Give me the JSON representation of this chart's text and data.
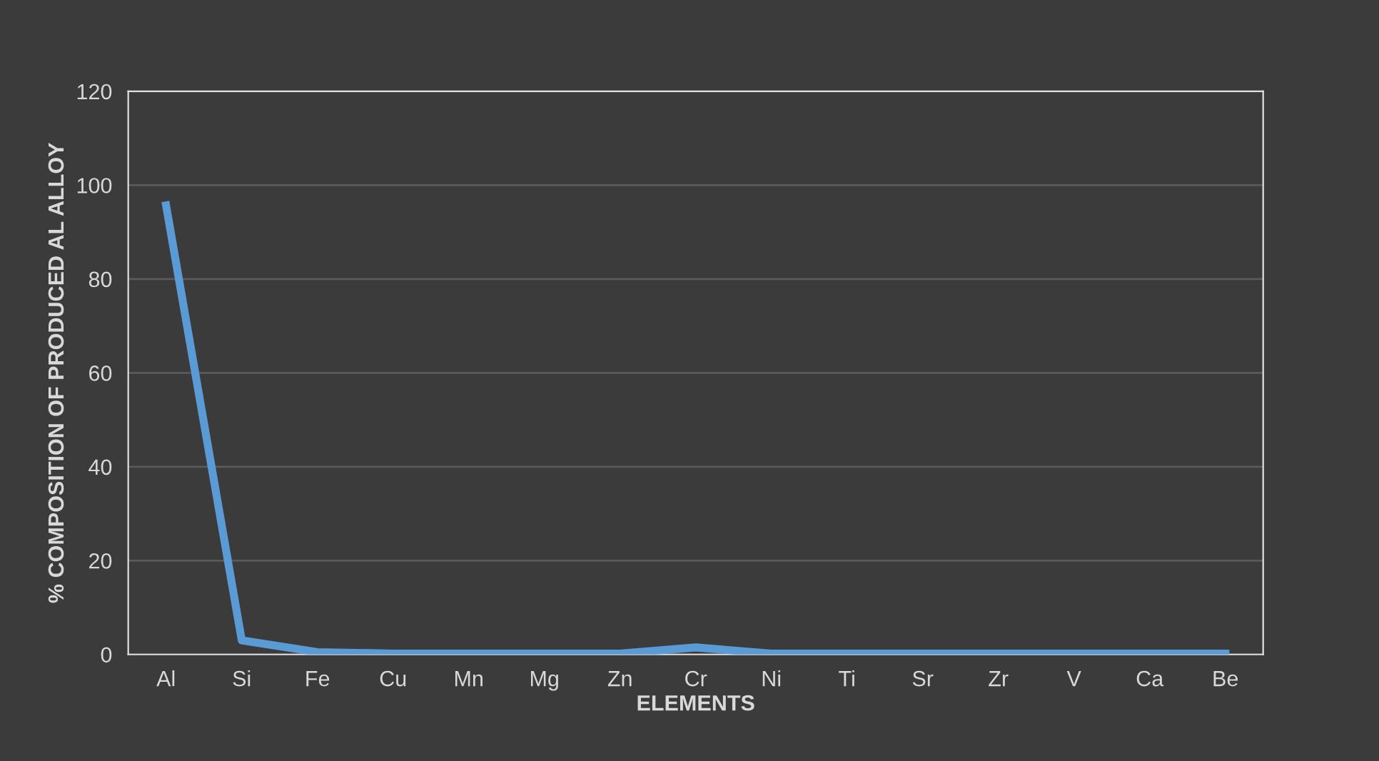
{
  "chart_data": {
    "type": "line",
    "xlabel": "ELEMENTS",
    "ylabel": "% COMPOSITION OF PRODUCED AL ALLOY",
    "categories": [
      "Al",
      "Si",
      "Fe",
      "Cu",
      "Mn",
      "Mg",
      "Zn",
      "Cr",
      "Ni",
      "Ti",
      "Sr",
      "Zr",
      "V",
      "Ca",
      "Be"
    ],
    "series": [
      {
        "color": "#5b9bd5",
        "values": [
          95.7,
          3,
          0.5,
          0.2,
          0.2,
          0.2,
          0.2,
          1.5,
          0.2,
          0.2,
          0.2,
          0.2,
          0.2,
          0.2,
          0.2
        ]
      }
    ],
    "ylim": [
      0,
      120
    ],
    "yticks": [
      0,
      20,
      40,
      60,
      80,
      100,
      120
    ],
    "grid": "y",
    "legend": false,
    "marker": "none",
    "line_style": "solid"
  }
}
